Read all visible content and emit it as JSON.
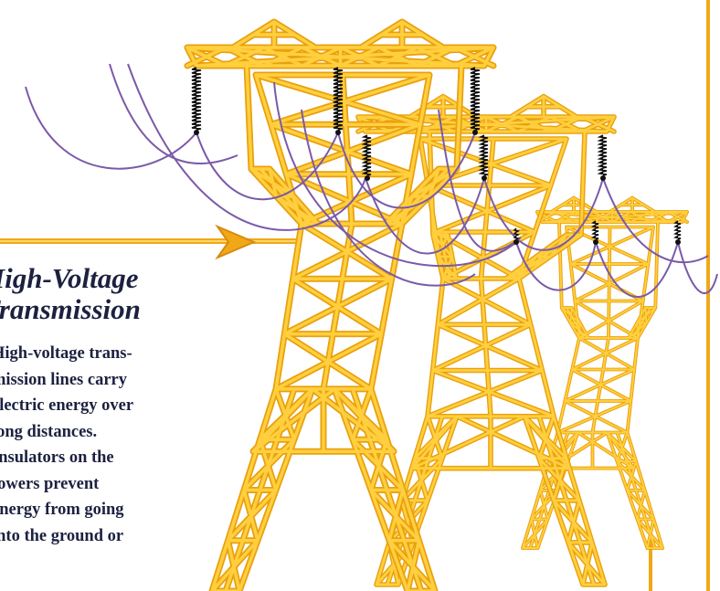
{
  "heading": {
    "lines": [
      "High-Voltage",
      "Transmission"
    ]
  },
  "body": {
    "lines": [
      "High-voltage trans-",
      "mission lines carry",
      "electric energy over",
      "long distances.",
      "Insulators on the",
      "towers prevent",
      "energy from going",
      "into the ground or"
    ]
  }
}
